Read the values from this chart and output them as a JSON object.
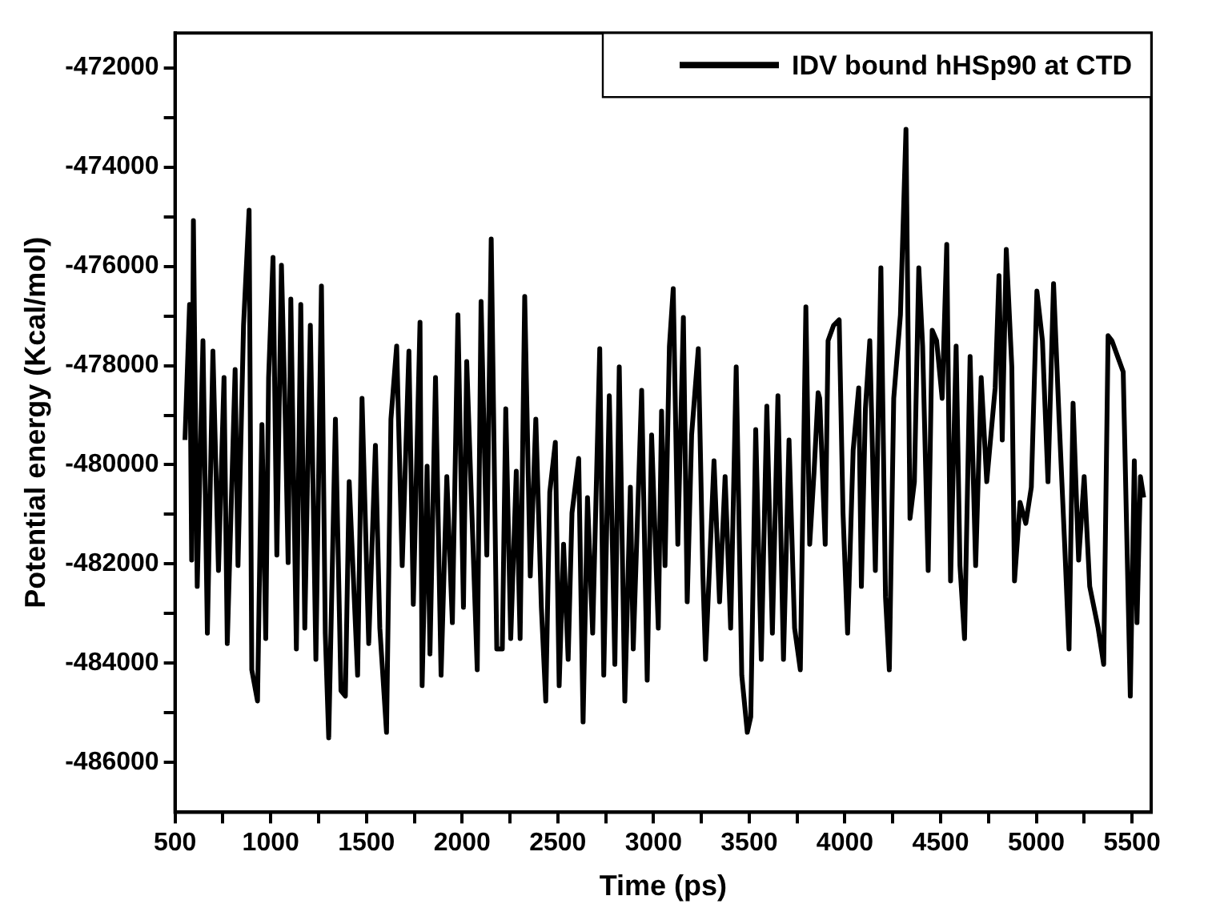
{
  "chart_data": {
    "type": "line",
    "xlabel": "Time (ps)",
    "ylabel": "Potential energy (Kcal/mol)",
    "xlim": [
      500,
      5600
    ],
    "ylim": [
      -487000,
      -471300
    ],
    "xticks": [
      500,
      {
        "value": 750,
        "label": null
      },
      1000,
      {
        "value": 1250,
        "label": null
      },
      1500,
      {
        "value": 1750,
        "label": null
      },
      2000,
      {
        "value": 2250,
        "label": null
      },
      2500,
      {
        "value": 2750,
        "label": null
      },
      3000,
      {
        "value": 3250,
        "label": null
      },
      3500,
      {
        "value": 3750,
        "label": null
      },
      4000,
      {
        "value": 4250,
        "label": null
      },
      4500,
      {
        "value": 4750,
        "label": null
      },
      5000,
      {
        "value": 5250,
        "label": null
      },
      5500
    ],
    "yticks": [
      -486000,
      {
        "value": -485000,
        "label": null
      },
      -484000,
      {
        "value": -483000,
        "label": null
      },
      -482000,
      {
        "value": -481000,
        "label": null
      },
      -480000,
      {
        "value": -479000,
        "label": null
      },
      -478000,
      {
        "value": -477000,
        "label": null
      },
      -476000,
      {
        "value": -475000,
        "label": null
      },
      -474000,
      {
        "value": -473000,
        "label": null
      },
      -472000
    ],
    "grid": false,
    "legend": "top right",
    "marker": "none",
    "line_style": "solid",
    "series": [
      {
        "name": "IDV bound hHSp90 at CTD",
        "color": "#000000",
        "x": [
          552,
          576,
          587,
          596,
          616,
          646,
          669,
          698,
          727,
          756,
          773,
          814,
          829,
          858,
          887,
          901,
          931,
          954,
          974,
          989,
          1012,
          1032,
          1056,
          1076,
          1091,
          1105,
          1134,
          1157,
          1178,
          1207,
          1236,
          1265,
          1285,
          1303,
          1338,
          1367,
          1390,
          1410,
          1454,
          1477,
          1512,
          1547,
          1570,
          1605,
          1628,
          1658,
          1687,
          1722,
          1745,
          1780,
          1791,
          1817,
          1832,
          1861,
          1890,
          1920,
          1949,
          1978,
          2007,
          2024,
          2079,
          2099,
          2129,
          2152,
          2181,
          2210,
          2228,
          2254,
          2283,
          2303,
          2327,
          2356,
          2385,
          2414,
          2437,
          2458,
          2487,
          2507,
          2530,
          2554,
          2574,
          2609,
          2632,
          2655,
          2682,
          2719,
          2740,
          2769,
          2798,
          2821,
          2850,
          2879,
          2894,
          2938,
          2967,
          2990,
          3025,
          3042,
          3060,
          3083,
          3103,
          3127,
          3156,
          3176,
          3199,
          3234,
          3258,
          3272,
          3316,
          3345,
          3374,
          3403,
          3432,
          3461,
          3490,
          3508,
          3534,
          3563,
          3592,
          3621,
          3650,
          3679,
          3708,
          3737,
          3767,
          3796,
          3816,
          3839,
          3860,
          3868,
          3897,
          3912,
          3941,
          3970,
          3990,
          4014,
          4043,
          4072,
          4086,
          4107,
          4130,
          4159,
          4188,
          4212,
          4232,
          4255,
          4290,
          4319,
          4340,
          4363,
          4386,
          4406,
          4435,
          4456,
          4479,
          4508,
          4532,
          4552,
          4581,
          4601,
          4625,
          4654,
          4683,
          4712,
          4741,
          4785,
          4805,
          4822,
          4843,
          4872,
          4886,
          4915,
          4945,
          4974,
          5003,
          5032,
          5061,
          5090,
          5119,
          5148,
          5171,
          5192,
          5221,
          5250,
          5279,
          5323,
          5352,
          5375,
          5395,
          5425,
          5454,
          5491,
          5512,
          5526,
          5544,
          5561
        ],
        "values": [
          -479500,
          -476770,
          -481920,
          -475080,
          -482450,
          -477500,
          -483390,
          -477710,
          -482130,
          -478240,
          -483600,
          -478080,
          -482030,
          -477190,
          -474870,
          -484130,
          -484760,
          -479190,
          -483500,
          -478240,
          -475820,
          -481820,
          -475980,
          -479080,
          -481970,
          -476660,
          -483710,
          -476770,
          -483290,
          -477190,
          -483920,
          -476400,
          -483390,
          -485500,
          -479080,
          -484550,
          -484660,
          -480340,
          -484240,
          -478660,
          -483600,
          -479610,
          -483290,
          -485390,
          -479080,
          -477610,
          -482030,
          -477710,
          -482810,
          -477130,
          -484450,
          -480030,
          -483810,
          -478240,
          -484240,
          -480240,
          -483180,
          -476980,
          -482870,
          -477920,
          -484130,
          -476710,
          -481820,
          -475450,
          -483710,
          -483710,
          -478870,
          -483500,
          -480130,
          -483500,
          -476610,
          -482240,
          -479080,
          -482870,
          -484760,
          -480550,
          -479550,
          -484450,
          -481600,
          -483920,
          -480970,
          -479870,
          -485180,
          -480660,
          -483390,
          -477660,
          -484240,
          -478610,
          -484020,
          -478030,
          -484760,
          -480450,
          -483710,
          -478500,
          -484340,
          -479400,
          -483290,
          -478920,
          -482030,
          -477610,
          -476450,
          -481600,
          -477030,
          -482760,
          -479400,
          -477660,
          -482240,
          -483920,
          -479920,
          -482760,
          -480240,
          -483290,
          -478030,
          -484240,
          -485390,
          -485080,
          -479290,
          -483920,
          -478820,
          -483390,
          -478610,
          -483920,
          -479500,
          -483290,
          -484130,
          -476820,
          -481600,
          -480130,
          -478550,
          -478660,
          -481600,
          -477500,
          -477190,
          -477080,
          -480970,
          -483390,
          -479710,
          -478450,
          -482450,
          -478870,
          -477500,
          -482130,
          -476030,
          -482660,
          -484130,
          -478660,
          -476980,
          -473240,
          -481080,
          -480340,
          -476030,
          -477610,
          -482130,
          -477290,
          -477500,
          -478660,
          -475560,
          -482340,
          -477610,
          -482030,
          -483500,
          -477820,
          -482030,
          -478240,
          -480340,
          -478450,
          -476190,
          -479500,
          -475660,
          -478030,
          -482340,
          -480760,
          -481180,
          -480450,
          -476500,
          -477500,
          -480340,
          -476350,
          -479080,
          -481600,
          -483710,
          -478760,
          -481920,
          -480240,
          -482450,
          -483290,
          -484020,
          -477400,
          -477500,
          -477820,
          -478130,
          -484660,
          -479920,
          -483180,
          -480240,
          -480660
        ]
      }
    ]
  }
}
